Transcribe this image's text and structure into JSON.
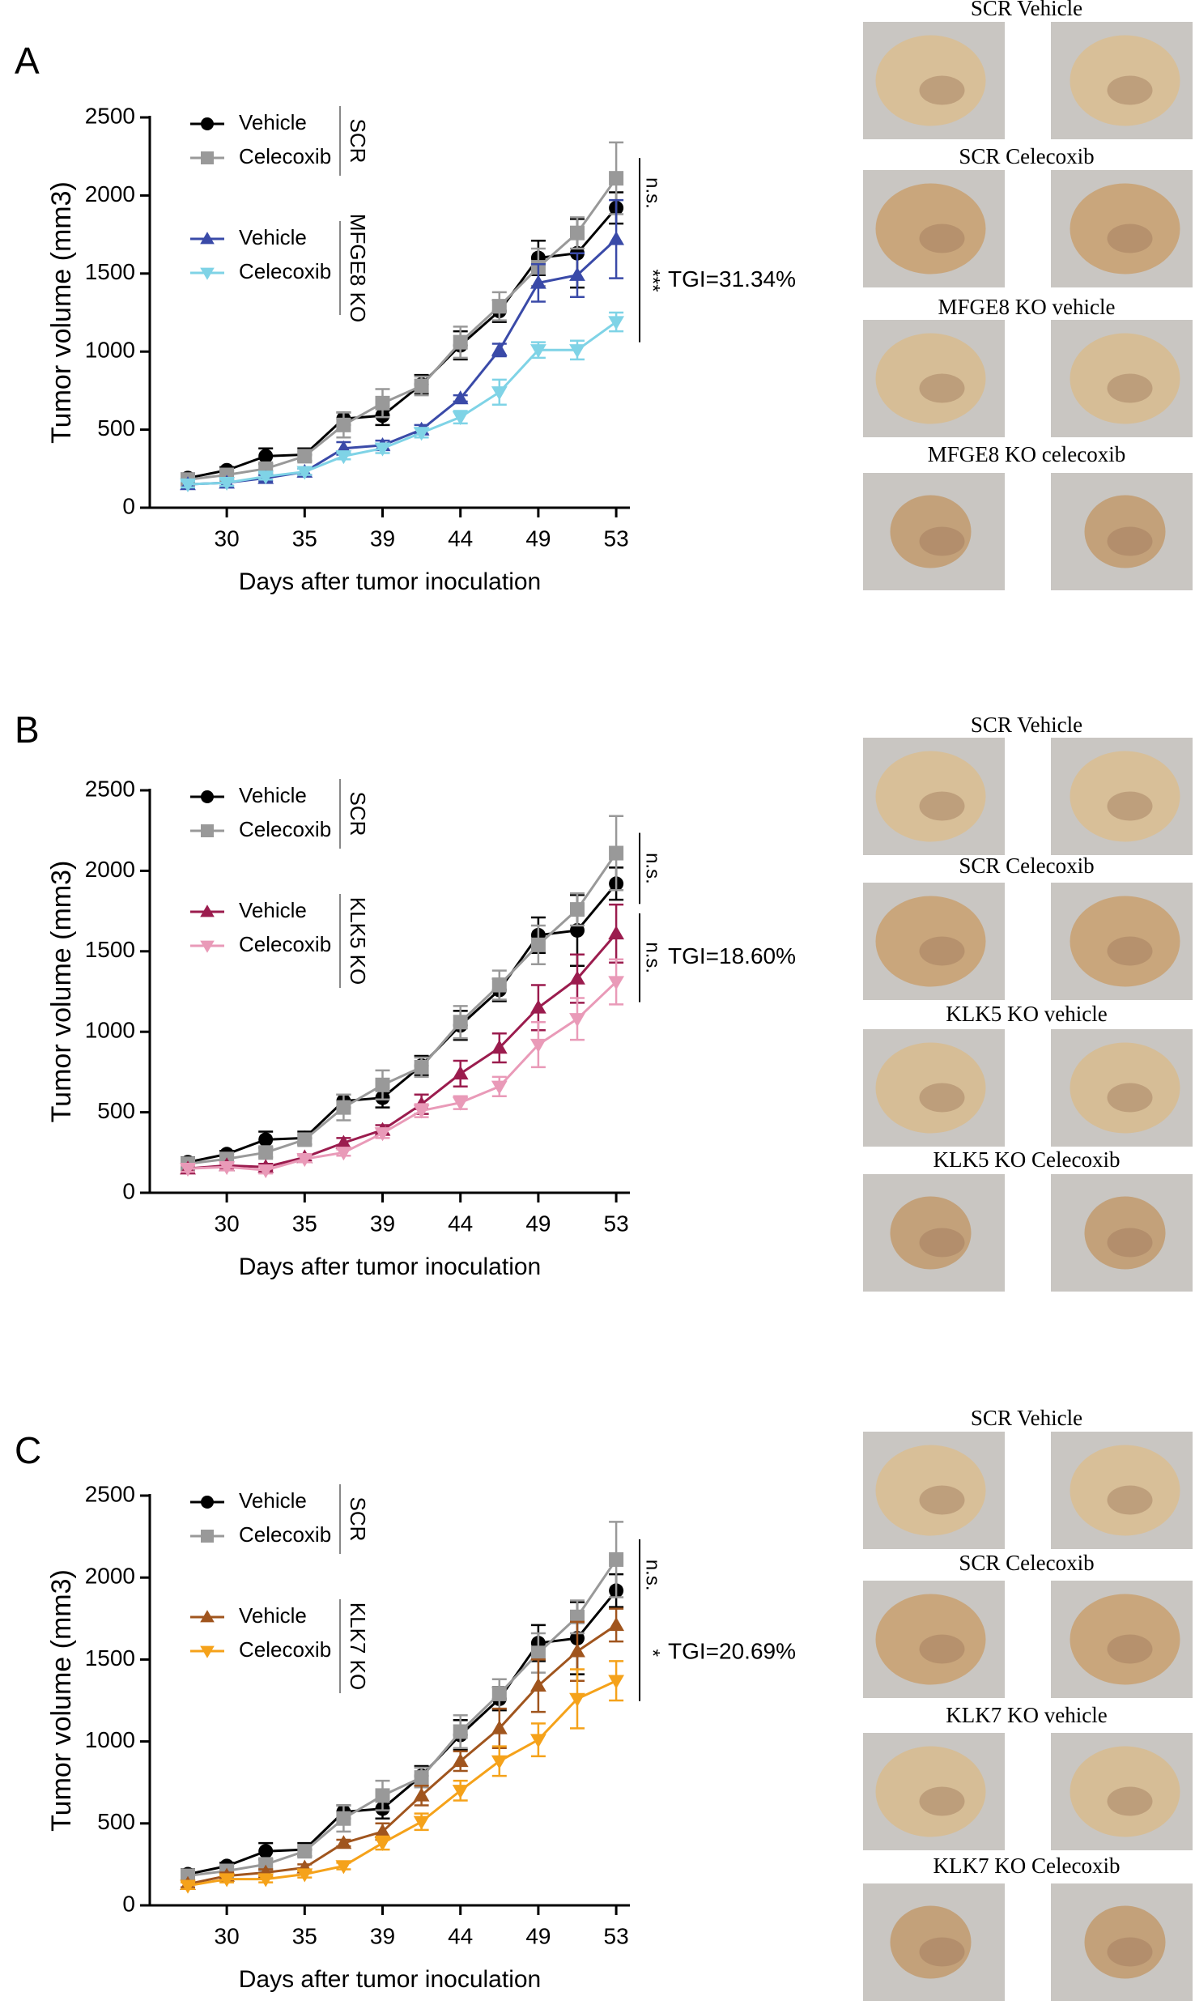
{
  "chart_data": [
    {
      "type": "line",
      "panel": "A",
      "ylabel": "Tumor volume (mm3)",
      "xlabel": "Days after tumor inoculation",
      "categories": [
        null,
        "30",
        null,
        "35",
        null,
        "39",
        null,
        "44",
        null,
        "49",
        null,
        "53"
      ],
      "ylim": [
        0,
        2500
      ],
      "yticks": [
        0,
        500,
        1000,
        1500,
        2000,
        2500
      ],
      "group_labels": [
        "SCR",
        "MFGE8 KO"
      ],
      "significance": [
        "n.s.",
        "***"
      ],
      "tgi": "TGI=31.34%",
      "tgi_color": "#4a90c8",
      "series": [
        {
          "name": "Vehicle",
          "color": "#000000",
          "marker": "circle",
          "values": [
            190,
            240,
            330,
            340,
            570,
            590,
            790,
            1040,
            1260,
            1600,
            1630,
            1920
          ],
          "errors": [
            30,
            20,
            50,
            40,
            40,
            60,
            60,
            90,
            70,
            110,
            220,
            100
          ]
        },
        {
          "name": "Celecoxib",
          "color": "#999999",
          "marker": "square",
          "values": [
            180,
            210,
            250,
            330,
            530,
            670,
            780,
            1060,
            1290,
            1540,
            1760,
            2110
          ],
          "errors": [
            20,
            20,
            30,
            30,
            80,
            90,
            60,
            100,
            90,
            120,
            100,
            230
          ]
        },
        {
          "name": "Vehicle",
          "color": "#3a4aa8",
          "marker": "triangle-up",
          "values": [
            150,
            160,
            190,
            230,
            380,
            400,
            500,
            700,
            1010,
            1440,
            1490,
            1720
          ],
          "errors": [
            20,
            20,
            20,
            20,
            40,
            30,
            30,
            20,
            40,
            120,
            140,
            250
          ]
        },
        {
          "name": "Celecoxib",
          "color": "#7fd3e6",
          "marker": "triangle-down",
          "values": [
            150,
            160,
            200,
            230,
            330,
            380,
            480,
            580,
            740,
            1010,
            1010,
            1190
          ],
          "errors": [
            20,
            20,
            20,
            20,
            20,
            30,
            30,
            40,
            80,
            50,
            60,
            60
          ]
        }
      ]
    },
    {
      "type": "line",
      "panel": "B",
      "ylabel": "Tumor volume (mm3)",
      "xlabel": "Days after tumor inoculation",
      "categories": [
        null,
        "30",
        null,
        "35",
        null,
        "39",
        null,
        "44",
        null,
        "49",
        null,
        "53"
      ],
      "ylim": [
        0,
        2500
      ],
      "yticks": [
        0,
        500,
        1000,
        1500,
        2000,
        2500
      ],
      "group_labels": [
        "SCR",
        "KLK5 KO"
      ],
      "significance": [
        "n.s.",
        "n.s."
      ],
      "tgi": "TGI=18.60%",
      "tgi_color": "#c8507a",
      "series": [
        {
          "name": "Vehicle",
          "color": "#000000",
          "marker": "circle",
          "values": [
            190,
            240,
            330,
            340,
            570,
            590,
            790,
            1040,
            1260,
            1600,
            1630,
            1920
          ],
          "errors": [
            30,
            20,
            50,
            40,
            40,
            60,
            60,
            90,
            70,
            110,
            220,
            100
          ]
        },
        {
          "name": "Celecoxib",
          "color": "#999999",
          "marker": "square",
          "values": [
            180,
            210,
            250,
            330,
            530,
            670,
            780,
            1060,
            1290,
            1540,
            1760,
            2110
          ],
          "errors": [
            20,
            20,
            30,
            30,
            80,
            90,
            60,
            100,
            90,
            120,
            100,
            230
          ]
        },
        {
          "name": "Vehicle",
          "color": "#9b1c4e",
          "marker": "triangle-up",
          "values": [
            150,
            170,
            160,
            220,
            310,
            390,
            550,
            740,
            900,
            1150,
            1330,
            1610
          ],
          "errors": [
            20,
            20,
            20,
            20,
            30,
            30,
            60,
            80,
            90,
            140,
            150,
            180
          ]
        },
        {
          "name": "Celecoxib",
          "color": "#e99ab8",
          "marker": "triangle-down",
          "values": [
            150,
            160,
            140,
            210,
            250,
            370,
            510,
            560,
            660,
            920,
            1080,
            1310
          ],
          "errors": [
            20,
            20,
            20,
            20,
            20,
            30,
            40,
            40,
            60,
            140,
            130,
            140
          ]
        }
      ]
    },
    {
      "type": "line",
      "panel": "C",
      "ylabel": "Tumor volume (mm3)",
      "xlabel": "Days after tumor inoculation",
      "categories": [
        null,
        "30",
        null,
        "35",
        null,
        "39",
        null,
        "44",
        null,
        "49",
        null,
        "53"
      ],
      "ylim": [
        0,
        2500
      ],
      "yticks": [
        0,
        500,
        1000,
        1500,
        2000,
        2500
      ],
      "group_labels": [
        "SCR",
        "KLK7 KO"
      ],
      "significance": [
        "n.s.",
        "*"
      ],
      "tgi": "TGI=20.69%",
      "tgi_color": "#d42020",
      "series": [
        {
          "name": "Vehicle",
          "color": "#000000",
          "marker": "circle",
          "values": [
            190,
            240,
            330,
            340,
            570,
            590,
            790,
            1040,
            1260,
            1600,
            1630,
            1920
          ],
          "errors": [
            30,
            20,
            50,
            40,
            40,
            60,
            60,
            90,
            70,
            110,
            220,
            100
          ]
        },
        {
          "name": "Celecoxib",
          "color": "#999999",
          "marker": "square",
          "values": [
            180,
            210,
            250,
            330,
            530,
            670,
            780,
            1060,
            1290,
            1540,
            1760,
            2110
          ],
          "errors": [
            20,
            20,
            30,
            30,
            80,
            90,
            60,
            100,
            90,
            120,
            100,
            230
          ]
        },
        {
          "name": "Vehicle",
          "color": "#a0551e",
          "marker": "triangle-up",
          "values": [
            130,
            180,
            200,
            230,
            380,
            450,
            670,
            880,
            1080,
            1340,
            1550,
            1710
          ],
          "errors": [
            20,
            20,
            20,
            20,
            20,
            50,
            60,
            60,
            120,
            160,
            180,
            100
          ]
        },
        {
          "name": "Celecoxib",
          "color": "#f5a21a",
          "marker": "triangle-down",
          "values": [
            120,
            160,
            160,
            190,
            240,
            380,
            510,
            700,
            880,
            1010,
            1260,
            1370
          ],
          "errors": [
            20,
            20,
            20,
            20,
            20,
            40,
            50,
            60,
            90,
            100,
            180,
            120
          ]
        }
      ]
    }
  ],
  "photo_captions": [
    [
      "SCR Vehicle",
      "SCR Celecoxib",
      "MFGE8 KO vehicle",
      "MFGE8 KO celecoxib"
    ],
    [
      "SCR Vehicle",
      "SCR Celecoxib",
      "KLK5 KO vehicle",
      "KLK5 KO Celecoxib"
    ],
    [
      "SCR Vehicle",
      "SCR Celecoxib",
      "KLK7 KO vehicle",
      "KLK7 KO Celecoxib"
    ]
  ]
}
